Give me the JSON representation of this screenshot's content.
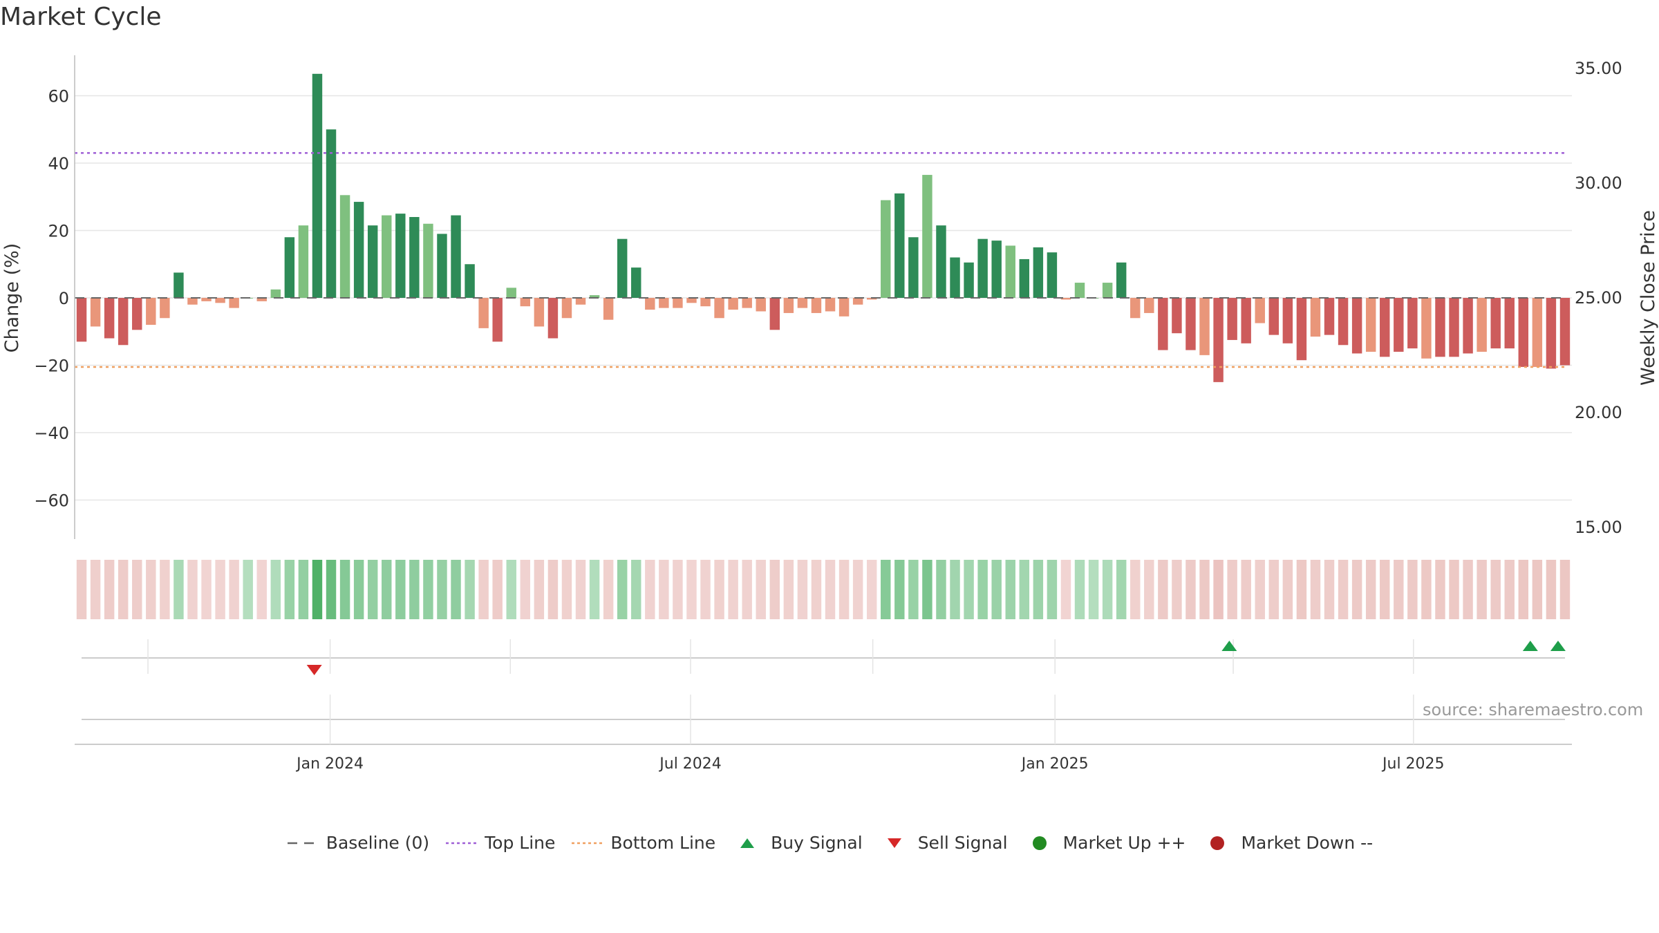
{
  "chart_data": {
    "type": "bar",
    "title": "Market Cycle",
    "ylabel": "Change (%)",
    "y2label": "Weekly Close Price",
    "ylim": [
      -72,
      72
    ],
    "yticks": [
      60,
      40,
      20,
      0,
      -20,
      -40,
      -60
    ],
    "ytick_labels": [
      "60",
      "40",
      "20",
      "0",
      "−20",
      "−40",
      "−60"
    ],
    "y2lim": [
      15.0,
      35.0
    ],
    "y2ticks": [
      35,
      30,
      25,
      20,
      15
    ],
    "y2tick_labels": [
      "35.00",
      "30.00",
      "25.00",
      "20.00",
      "15.00"
    ],
    "top_line": 43,
    "bottom_line": -20.5,
    "x_start": "2023-08-25",
    "x_end": "2025-09-19",
    "x_ticks": [
      {
        "date": "2024-01-01",
        "label": "Jan 2024"
      },
      {
        "date": "2024-07-01",
        "label": "Jul 2024"
      },
      {
        "date": "2025-01-01",
        "label": "Jan 2025"
      },
      {
        "date": "2025-07-01",
        "label": "Jul 2025"
      }
    ],
    "values": [
      -13,
      -8.5,
      -12,
      -14,
      -9.5,
      -8,
      -6,
      7.5,
      -2,
      -1,
      -1.5,
      -3,
      0,
      -1,
      2.5,
      18,
      21.5,
      66.5,
      50,
      30.5,
      28.5,
      21.5,
      24.5,
      25,
      24,
      22,
      19,
      24.5,
      10,
      -9,
      -13,
      3,
      -2.5,
      -8.5,
      -12,
      -6,
      -2,
      0.8,
      -6.5,
      17.5,
      9,
      -3.5,
      -3,
      -3,
      -1.5,
      -2.5,
      -6,
      -3.5,
      -3,
      -4,
      -9.5,
      -4.5,
      -3,
      -4.5,
      -4,
      -5.5,
      -2,
      -0.5,
      29,
      31,
      18,
      36.5,
      21.5,
      12,
      10.5,
      17.5,
      17,
      15.5,
      11.5,
      15,
      13.5,
      -0.5,
      4.5,
      0,
      4.5,
      10.5,
      -6,
      -4.5,
      -15.5,
      -10.5,
      -15.5,
      -17,
      -25,
      -12.5,
      -13.5,
      -7.5,
      -11,
      -13.5,
      -18.5,
      -11.5,
      -11,
      -14,
      -16.5,
      -16,
      -17.5,
      -16,
      -15,
      -18,
      -17.5,
      -17.5,
      -16.5,
      -16,
      -15,
      -15,
      -20.5,
      -20.5,
      -21,
      -20
    ],
    "buy_signals": [
      "2025-03-30",
      "2025-08-29",
      "2025-09-12"
    ],
    "sell_signals": [
      "2023-12-24"
    ],
    "colors": {
      "strong_up": "#2e8b57",
      "up": "#7fc07f",
      "strong_down": "#cd5c5c",
      "down": "#e9967a",
      "top_line": "#9f5fd6",
      "bottom_line": "#f0a060",
      "baseline": "#666666",
      "buy": "#1e9e4a",
      "sell": "#d62828",
      "market_up": "#228b22",
      "market_down": "#b22222"
    },
    "legend": [
      {
        "label": "Baseline (0)",
        "symbol": "dash",
        "color": "#666666"
      },
      {
        "label": "Top Line",
        "symbol": "dotted",
        "color": "#9f5fd6"
      },
      {
        "label": "Bottom Line",
        "symbol": "dotted",
        "color": "#f0a060"
      },
      {
        "label": "Buy Signal",
        "symbol": "triangle-up",
        "color": "#1e9e4a"
      },
      {
        "label": "Sell Signal",
        "symbol": "triangle-down",
        "color": "#d62828"
      },
      {
        "label": "Market Up ++",
        "symbol": "circle",
        "color": "#228b22"
      },
      {
        "label": "Market Down --",
        "symbol": "circle",
        "color": "#b22222"
      }
    ],
    "grid": true,
    "legend_position": "bottom"
  },
  "source": "source: sharemaestro.com"
}
